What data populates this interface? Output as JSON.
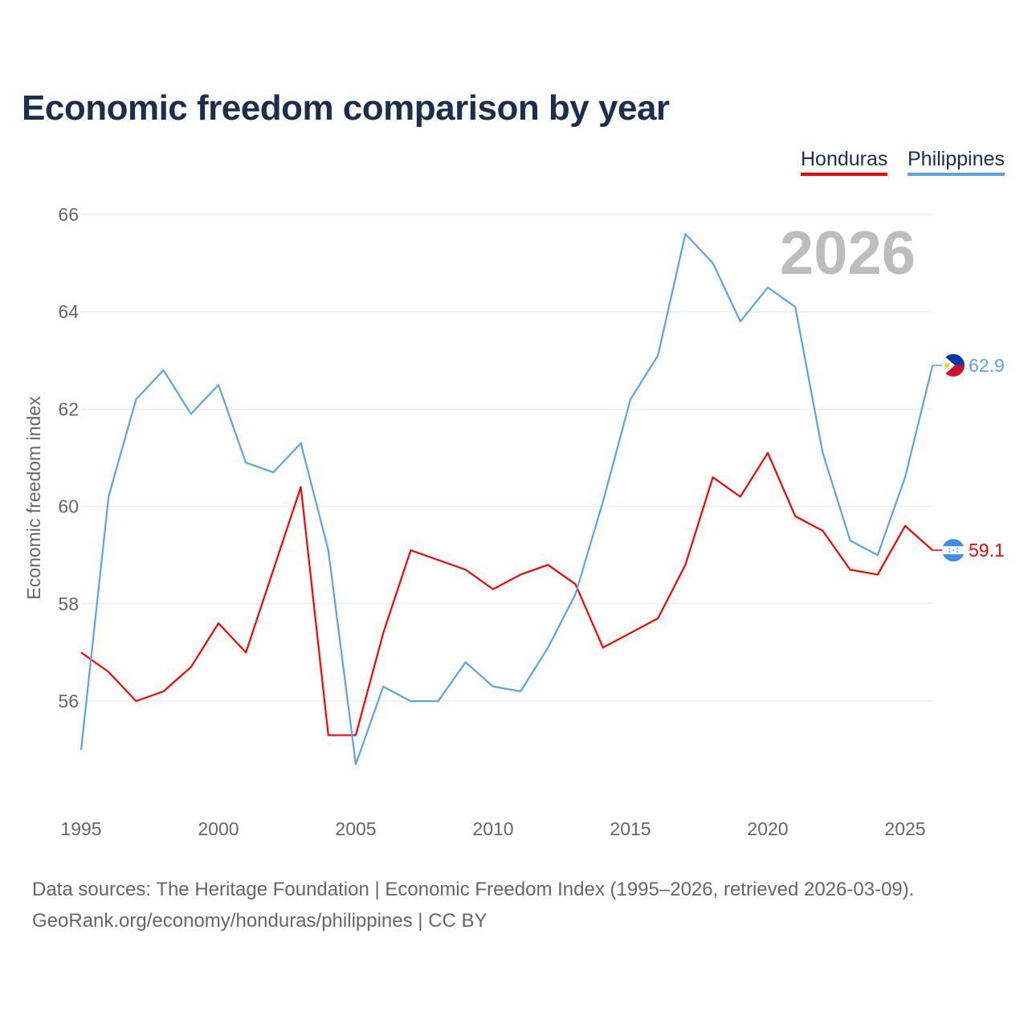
{
  "chart_data": {
    "type": "line",
    "title": "Economic freedom comparison by year",
    "ylabel": "Economic freedom index",
    "xlabel": "",
    "ylim": [
      53.7,
      66
    ],
    "xlim": [
      1995,
      2026
    ],
    "yticks": [
      56,
      58,
      60,
      62,
      64,
      66
    ],
    "xticks": [
      1995,
      2000,
      2005,
      2010,
      2015,
      2020,
      2025
    ],
    "grid": true,
    "legend_position": "top-right",
    "year_label": "2026",
    "x": [
      1995,
      1996,
      1997,
      1998,
      1999,
      2000,
      2001,
      2002,
      2003,
      2004,
      2005,
      2006,
      2007,
      2008,
      2009,
      2010,
      2011,
      2012,
      2013,
      2014,
      2015,
      2016,
      2017,
      2018,
      2019,
      2020,
      2021,
      2022,
      2023,
      2024,
      2025,
      2026
    ],
    "series": [
      {
        "name": "Honduras",
        "color": "#ff0000",
        "end_label": "59.1",
        "values": [
          57.0,
          56.6,
          56.0,
          56.2,
          56.7,
          57.6,
          57.0,
          58.7,
          60.4,
          55.3,
          55.3,
          57.4,
          59.1,
          58.9,
          58.7,
          58.3,
          58.6,
          58.8,
          58.4,
          57.1,
          57.4,
          57.7,
          58.8,
          60.6,
          60.2,
          61.1,
          59.8,
          59.5,
          58.7,
          58.6,
          59.6,
          59.1
        ]
      },
      {
        "name": "Philippines",
        "color": "#5ba3e8",
        "end_label": "62.9",
        "values": [
          55.0,
          60.2,
          62.2,
          62.8,
          61.9,
          62.5,
          60.9,
          60.7,
          61.3,
          59.1,
          54.7,
          56.3,
          56.0,
          56.0,
          56.8,
          56.3,
          56.2,
          57.1,
          58.2,
          60.1,
          62.2,
          63.1,
          65.6,
          65.0,
          63.8,
          64.5,
          64.1,
          61.1,
          59.3,
          59.0,
          60.6,
          62.9
        ]
      }
    ]
  },
  "source_line1": "Data sources: The Heritage Foundation | Economic Freedom Index (1995–2026, retrieved 2026-03-09).",
  "source_line2": "GeoRank.org/economy/honduras/philippines | CC BY"
}
